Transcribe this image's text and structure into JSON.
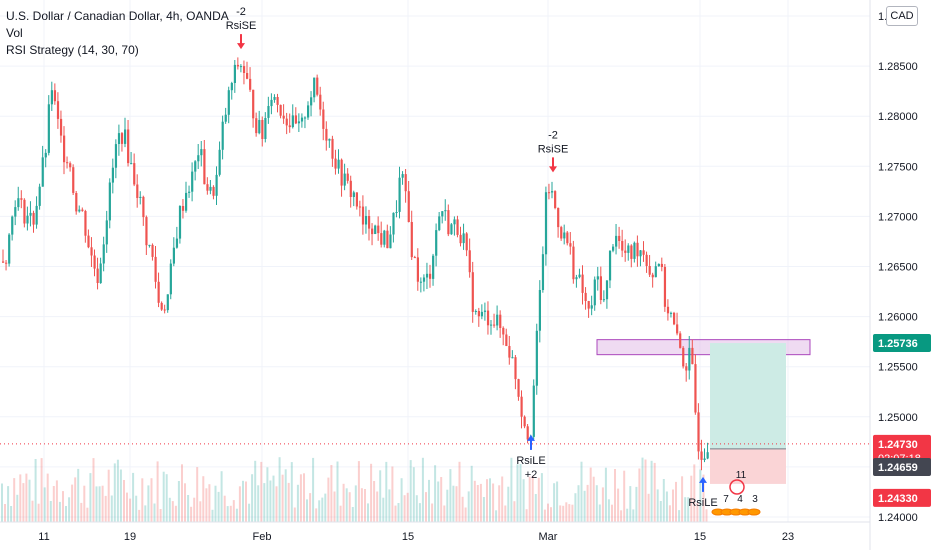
{
  "header": {
    "title": "U.S. Dollar / Canadian Dollar, 4h, OANDA",
    "indicator_vol": "Vol",
    "indicator_rsi": "RSI Strategy (14, 30, 70)",
    "currency": "CAD"
  },
  "chart_data": {
    "type": "candlestick",
    "symbol": "USDCAD",
    "interval": "4h",
    "exchange": "OANDA",
    "ylim": [
      1.2395,
      1.2908
    ],
    "y_ticks": [
      "1.29000",
      "1.28500",
      "1.28000",
      "1.27500",
      "1.27000",
      "1.26500",
      "1.26000",
      "1.25500",
      "1.25000",
      "1.24500",
      "1.24000"
    ],
    "x_ticks": [
      "11",
      "19",
      "Feb",
      "15",
      "Mar",
      "15",
      "23"
    ],
    "price_path": [
      [
        0,
        1.2655
      ],
      [
        6,
        1.2665
      ],
      [
        14,
        1.272
      ],
      [
        22,
        1.2705
      ],
      [
        32,
        1.2695
      ],
      [
        40,
        1.274
      ],
      [
        46,
        1.2775
      ],
      [
        50,
        1.2835
      ],
      [
        55,
        1.28
      ],
      [
        62,
        1.2765
      ],
      [
        68,
        1.276
      ],
      [
        74,
        1.2715
      ],
      [
        82,
        1.27
      ],
      [
        90,
        1.266
      ],
      [
        97,
        1.264
      ],
      [
        104,
        1.269
      ],
      [
        110,
        1.2735
      ],
      [
        116,
        1.2775
      ],
      [
        122,
        1.2785
      ],
      [
        130,
        1.275
      ],
      [
        138,
        1.272
      ],
      [
        145,
        1.268
      ],
      [
        152,
        1.2655
      ],
      [
        158,
        1.261
      ],
      [
        166,
        1.2615
      ],
      [
        172,
        1.266
      ],
      [
        178,
        1.27
      ],
      [
        185,
        1.2725
      ],
      [
        192,
        1.274
      ],
      [
        198,
        1.277
      ],
      [
        204,
        1.2735
      ],
      [
        210,
        1.272
      ],
      [
        216,
        1.274
      ],
      [
        222,
        1.279
      ],
      [
        230,
        1.283
      ],
      [
        238,
        1.2855
      ],
      [
        243,
        1.2845
      ],
      [
        250,
        1.2815
      ],
      [
        256,
        1.279
      ],
      [
        262,
        1.278
      ],
      [
        268,
        1.2825
      ],
      [
        276,
        1.2815
      ],
      [
        284,
        1.28
      ],
      [
        292,
        1.279
      ],
      [
        300,
        1.2785
      ],
      [
        306,
        1.2815
      ],
      [
        314,
        1.283
      ],
      [
        322,
        1.2795
      ],
      [
        330,
        1.277
      ],
      [
        338,
        1.2745
      ],
      [
        346,
        1.273
      ],
      [
        354,
        1.272
      ],
      [
        362,
        1.269
      ],
      [
        370,
        1.2695
      ],
      [
        378,
        1.268
      ],
      [
        386,
        1.2675
      ],
      [
        394,
        1.27
      ],
      [
        400,
        1.2745
      ],
      [
        406,
        1.2705
      ],
      [
        412,
        1.266
      ],
      [
        420,
        1.263
      ],
      [
        428,
        1.264
      ],
      [
        434,
        1.268
      ],
      [
        440,
        1.271
      ],
      [
        448,
        1.269
      ],
      [
        456,
        1.269
      ],
      [
        462,
        1.268
      ],
      [
        468,
        1.264
      ],
      [
        474,
        1.26
      ],
      [
        482,
        1.26
      ],
      [
        490,
        1.26
      ],
      [
        498,
        1.259
      ],
      [
        506,
        1.2575
      ],
      [
        514,
        1.2545
      ],
      [
        520,
        1.251
      ],
      [
        526,
        1.2485
      ],
      [
        530,
        1.249
      ],
      [
        534,
        1.255
      ],
      [
        538,
        1.261
      ],
      [
        542,
        1.267
      ],
      [
        546,
        1.273
      ],
      [
        550,
        1.2725
      ],
      [
        556,
        1.27
      ],
      [
        562,
        1.268
      ],
      [
        568,
        1.267
      ],
      [
        574,
        1.264
      ],
      [
        580,
        1.263
      ],
      [
        588,
        1.26
      ],
      [
        596,
        1.264
      ],
      [
        604,
        1.261
      ],
      [
        608,
        1.2655
      ],
      [
        614,
        1.269
      ],
      [
        620,
        1.2665
      ],
      [
        628,
        1.266
      ],
      [
        636,
        1.267
      ],
      [
        644,
        1.2665
      ],
      [
        650,
        1.264
      ],
      [
        658,
        1.266
      ],
      [
        664,
        1.2615
      ],
      [
        670,
        1.26
      ],
      [
        676,
        1.2575
      ],
      [
        680,
        1.2565
      ],
      [
        684,
        1.255
      ],
      [
        688,
        1.256
      ],
      [
        692,
        1.254
      ],
      [
        696,
        1.248
      ],
      [
        700,
        1.2465
      ],
      [
        704,
        1.247
      ],
      [
        708,
        1.2473
      ]
    ],
    "volume_min": 0.15,
    "volume_max": 0.85,
    "annotations": [
      {
        "kind": "short",
        "line1": "-2",
        "line2": "RsiSE",
        "x_date": "Jan 29",
        "price": 1.2868
      },
      {
        "kind": "short",
        "line1": "-2",
        "line2": "RsiSE",
        "x_date": "Mar 1",
        "price": 1.2745
      },
      {
        "kind": "long",
        "line1": "RsiLE",
        "line2": "+2",
        "x_date": "Feb 26",
        "price": 1.2482
      },
      {
        "kind": "long",
        "line1": "RsiLE",
        "line2": "",
        "x_date": "Mar 15",
        "price": 1.244
      }
    ],
    "zone_low": 1.2565,
    "zone_high": 1.2574,
    "position": {
      "entry": 1.2468,
      "target": 1.25736,
      "stop": 1.2433
    },
    "price_labels": [
      {
        "value": "1.25736",
        "color": "#089981",
        "text_color": "#ffffff"
      },
      {
        "value": "1.24730",
        "color": "#f23645",
        "text_color": "#ffffff",
        "sub": "02:07:18"
      },
      {
        "value": "1.24659",
        "color": "#434651",
        "text_color": "#ffffff"
      },
      {
        "value": "1.24330",
        "color": "#f23645",
        "text_color": "#ffffff"
      }
    ],
    "badge": {
      "count": "11",
      "numbers": [
        "7",
        "4",
        "3"
      ]
    },
    "colors": {
      "up": "#26a69a",
      "down": "#ef5350",
      "grid": "#f0f3fa",
      "zone": "#e1bee7",
      "target_fill": "#cdebe5",
      "stop_fill": "#fad4d6"
    }
  }
}
